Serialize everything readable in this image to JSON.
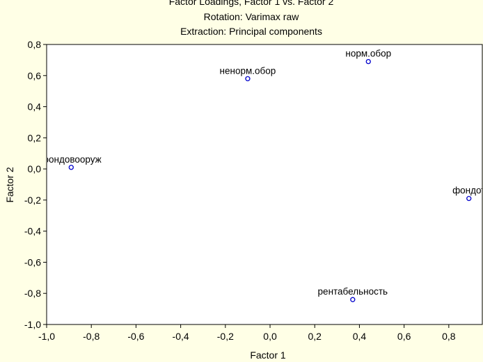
{
  "chart_data": {
    "type": "scatter",
    "title": "Factor Loadings, Factor 1 vs. Factor 2",
    "subtitle_lines": [
      "Rotation: Varimax raw",
      "Extraction: Principal components"
    ],
    "xlabel": "Factor 1",
    "ylabel": "Factor 2",
    "xlim": [
      -1.0,
      0.95
    ],
    "ylim": [
      -1.0,
      0.8
    ],
    "xticks": [
      "-1,0",
      "-0,8",
      "-0,6",
      "-0,4",
      "-0,2",
      "0,0",
      "0,2",
      "0,4",
      "0,6",
      "0,8"
    ],
    "xtick_values": [
      -1.0,
      -0.8,
      -0.6,
      -0.4,
      -0.2,
      0.0,
      0.2,
      0.4,
      0.6,
      0.8
    ],
    "yticks": [
      "0,8",
      "0,6",
      "0,4",
      "0,2",
      "0,0",
      "-0,2",
      "-0,4",
      "-0,6",
      "-0,8",
      "-1,0"
    ],
    "ytick_values": [
      0.8,
      0.6,
      0.4,
      0.2,
      0.0,
      -0.2,
      -0.4,
      -0.6,
      -0.8,
      -1.0
    ],
    "grid": false,
    "points": [
      {
        "label": "фондовооруж",
        "x": -0.89,
        "y": 0.01
      },
      {
        "label": "ненорм.обор",
        "x": -0.1,
        "y": 0.58
      },
      {
        "label": "норм.обор",
        "x": 0.44,
        "y": 0.69
      },
      {
        "label": "фондот",
        "x": 0.89,
        "y": -0.19
      },
      {
        "label": "рентабельность",
        "x": 0.37,
        "y": -0.84
      }
    ],
    "colors": {
      "background": "#ffffe6",
      "plot_background": "#ffffff",
      "marker": "#0000cc"
    }
  }
}
